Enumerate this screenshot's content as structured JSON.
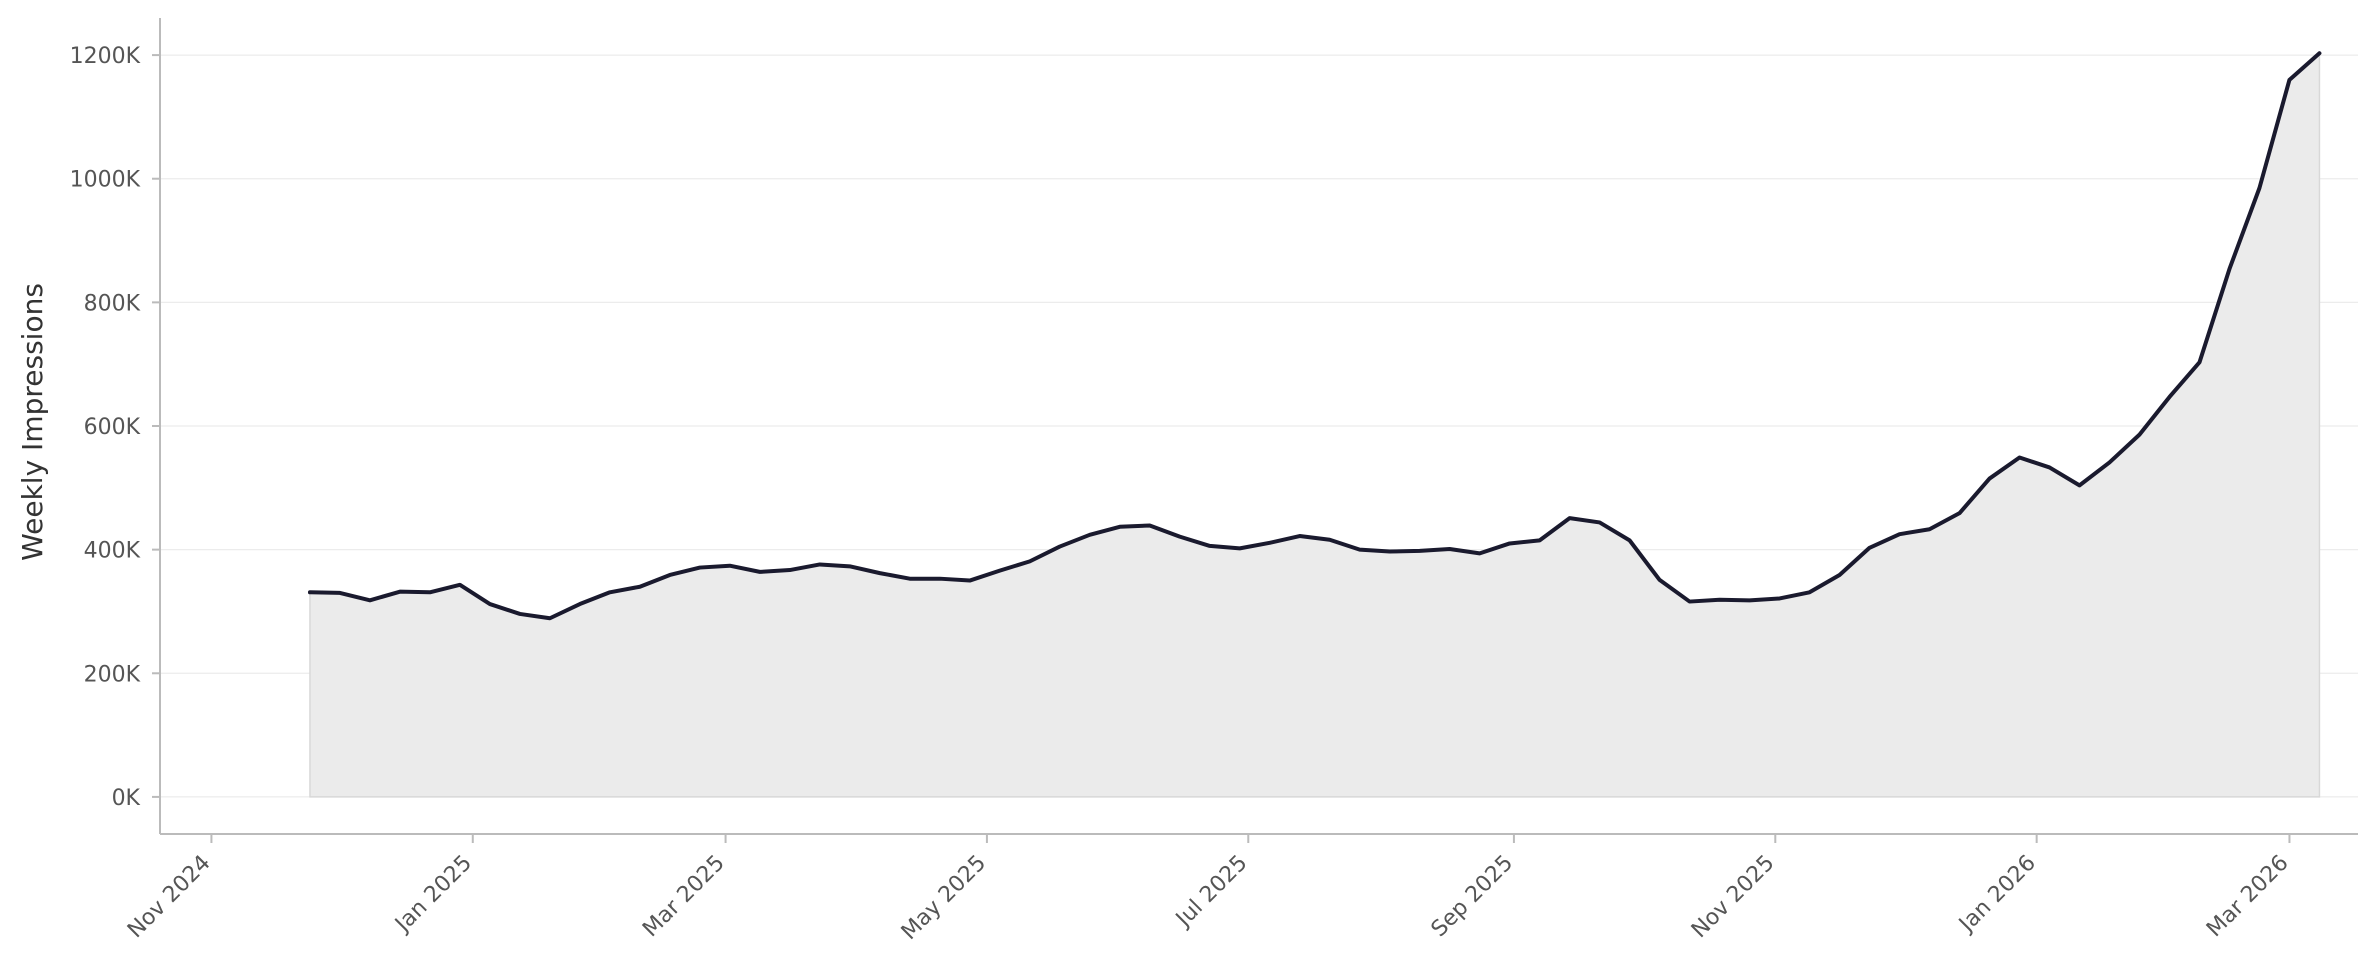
{
  "chart_data": {
    "type": "area",
    "title": "",
    "xlabel": "",
    "ylabel": "Weekly Impressions",
    "x_axis_type": "date",
    "xlim": [
      "2024-10-20",
      "2026-03-17"
    ],
    "ylim": [
      -60000,
      1260000
    ],
    "x_ticks": [
      {
        "date": "2024-11-01",
        "label": "Nov 2024"
      },
      {
        "date": "2025-01-01",
        "label": "Jan 2025"
      },
      {
        "date": "2025-03-01",
        "label": "Mar 2025"
      },
      {
        "date": "2025-05-01",
        "label": "May 2025"
      },
      {
        "date": "2025-07-01",
        "label": "Jul 2025"
      },
      {
        "date": "2025-09-01",
        "label": "Sep 2025"
      },
      {
        "date": "2025-11-01",
        "label": "Nov 2025"
      },
      {
        "date": "2026-01-01",
        "label": "Jan 2026"
      },
      {
        "date": "2026-03-01",
        "label": "Mar 2026"
      }
    ],
    "y_ticks": [
      {
        "value": 0,
        "label": "0K"
      },
      {
        "value": 200000,
        "label": "200K"
      },
      {
        "value": 400000,
        "label": "400K"
      },
      {
        "value": 600000,
        "label": "600K"
      },
      {
        "value": 800000,
        "label": "800K"
      },
      {
        "value": 1000000,
        "label": "1000K"
      },
      {
        "value": 1200000,
        "label": "1200K"
      }
    ],
    "grid": "horizontal",
    "legend": "none",
    "colors": {
      "line": "#1a1a2e",
      "fill": "#ebebeb",
      "fill_edge": "#d8d8d8",
      "grid": "#ececec",
      "axis": "#bbbbbb"
    },
    "series": [
      {
        "x": [
          "2024-11-24",
          "2024-12-01",
          "2024-12-08",
          "2024-12-15",
          "2024-12-22",
          "2024-12-29",
          "2025-01-05",
          "2025-01-12",
          "2025-01-19",
          "2025-01-26",
          "2025-02-02",
          "2025-02-09",
          "2025-02-16",
          "2025-02-23",
          "2025-03-02",
          "2025-03-09",
          "2025-03-16",
          "2025-03-23",
          "2025-03-30",
          "2025-04-06",
          "2025-04-13",
          "2025-04-20",
          "2025-04-27",
          "2025-05-04",
          "2025-05-11",
          "2025-05-18",
          "2025-05-25",
          "2025-06-01",
          "2025-06-08",
          "2025-06-15",
          "2025-06-22",
          "2025-06-29",
          "2025-07-06",
          "2025-07-13",
          "2025-07-20",
          "2025-07-27",
          "2025-08-03",
          "2025-08-10",
          "2025-08-17",
          "2025-08-24",
          "2025-08-31",
          "2025-09-07",
          "2025-09-14",
          "2025-09-21",
          "2025-09-28",
          "2025-10-05",
          "2025-10-12",
          "2025-10-19",
          "2025-10-26",
          "2025-11-02",
          "2025-11-09",
          "2025-11-16",
          "2025-11-23",
          "2025-11-30",
          "2025-12-07",
          "2025-12-14",
          "2025-12-21",
          "2025-12-28",
          "2026-01-04",
          "2026-01-11",
          "2026-01-18",
          "2026-01-25",
          "2026-02-01",
          "2026-02-08",
          "2026-02-15",
          "2026-02-22",
          "2026-03-01",
          "2026-03-08"
        ],
        "values": [
          331000,
          330000,
          318000,
          332000,
          331000,
          343000,
          312000,
          296000,
          289000,
          312000,
          331000,
          340000,
          359000,
          371000,
          374000,
          364000,
          367000,
          376000,
          373000,
          362000,
          353000,
          353000,
          350000,
          366000,
          381000,
          405000,
          424000,
          437000,
          439000,
          421000,
          406000,
          402000,
          411000,
          422000,
          416000,
          400000,
          397000,
          398000,
          401000,
          394000,
          410000,
          415000,
          451000,
          444000,
          415000,
          351000,
          316000,
          319000,
          318000,
          321000,
          331000,
          359000,
          403000,
          425000,
          433000,
          459000,
          515000,
          549000,
          533000,
          504000,
          541000,
          586000,
          647000,
          703000,
          854000,
          985000,
          1160000,
          1203000
        ]
      }
    ]
  }
}
